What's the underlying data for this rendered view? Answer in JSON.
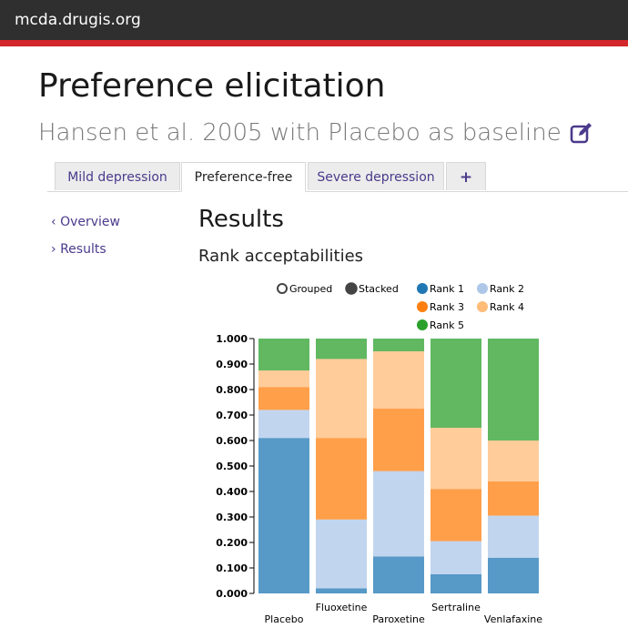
{
  "topbar": {
    "brand": "mcda.drugis.org"
  },
  "page": {
    "title": "Preference elicitation",
    "subtitle": "Hansen et al. 2005 with Placebo as baseline"
  },
  "tabs": [
    {
      "label": "Mild depression",
      "active": false
    },
    {
      "label": "Preference-free",
      "active": true
    },
    {
      "label": "Severe depression",
      "active": false
    },
    {
      "label": "+",
      "active": false
    }
  ],
  "sidebar": {
    "items": [
      {
        "label": "Overview",
        "icon": "chevron-left-icon"
      },
      {
        "label": "Results",
        "icon": "chevron-right-icon"
      }
    ]
  },
  "main": {
    "section_title": "Results",
    "chart_title": "Rank acceptabilities"
  },
  "chart_controls": {
    "grouped_label": "Grouped",
    "stacked_label": "Stacked",
    "selected": "stacked"
  },
  "chart_data": {
    "type": "bar",
    "stacked": true,
    "categories": [
      "Placebo",
      "Fluoxetine",
      "Paroxetine",
      "Sertraline",
      "Venlafaxine"
    ],
    "series": [
      {
        "name": "Rank 1",
        "color": "#1f77b4",
        "values": [
          0.61,
          0.02,
          0.145,
          0.075,
          0.14
        ]
      },
      {
        "name": "Rank 2",
        "color": "#aec7e8",
        "values": [
          0.11,
          0.27,
          0.335,
          0.13,
          0.165
        ]
      },
      {
        "name": "Rank 3",
        "color": "#ff7f0e",
        "values": [
          0.09,
          0.32,
          0.245,
          0.205,
          0.135
        ]
      },
      {
        "name": "Rank 4",
        "color": "#ffbb78",
        "values": [
          0.065,
          0.31,
          0.225,
          0.24,
          0.16
        ]
      },
      {
        "name": "Rank 5",
        "color": "#2ca02c",
        "values": [
          0.125,
          0.08,
          0.05,
          0.35,
          0.4
        ]
      }
    ],
    "ylim": [
      0,
      1
    ],
    "yticks": [
      "0.000",
      "0.100",
      "0.200",
      "0.300",
      "0.400",
      "0.500",
      "0.600",
      "0.700",
      "0.800",
      "0.900",
      "1.000"
    ],
    "legend_position": "top-right",
    "xlabel": "",
    "ylabel": "",
    "grid": false
  }
}
